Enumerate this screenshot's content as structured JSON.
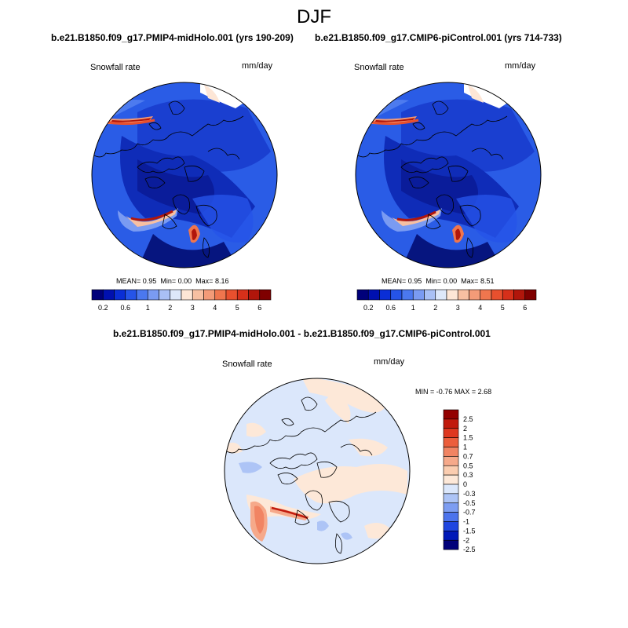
{
  "figure": {
    "season": "DJF"
  },
  "panels": [
    {
      "title": "b.e21.B1850.f09_g17.PMIP4-midHolo.001 (yrs 190-209)",
      "variable": "Snowfall rate",
      "units": "mm/day",
      "stats": {
        "mean_label": "MEAN=",
        "mean": "0.95",
        "min_label": "Min=",
        "min": "0.00",
        "max_label": "Max=",
        "max": "8.16"
      }
    },
    {
      "title": "b.e21.B1850.f09_g17.CMIP6-piControl.001 (yrs 714-733)",
      "variable": "Snowfall rate",
      "units": "mm/day",
      "stats": {
        "mean_label": "MEAN=",
        "mean": "0.95",
        "min_label": "Min=",
        "min": "0.00",
        "max_label": "Max=",
        "max": "8.51"
      }
    }
  ],
  "diff_panel": {
    "title": "b.e21.B1850.f09_g17.PMIP4-midHolo.001 - b.e21.B1850.f09_g17.CMIP6-piControl.001",
    "variable": "Snowfall rate",
    "units": "mm/day",
    "stats": {
      "min_label": "MIN =",
      "min": "-0.76",
      "max_label": "MAX =",
      "max": "2.68"
    }
  },
  "colorbar_abs": {
    "colors": [
      "#00007a",
      "#0010b0",
      "#0a2ed6",
      "#2554e8",
      "#4b78ef",
      "#7a9bf2",
      "#a9c0f5",
      "#dde8fa",
      "#fde6d6",
      "#f7c0a2",
      "#f39b78",
      "#ef764e",
      "#e8502e",
      "#d6301a",
      "#b1160b",
      "#7f0000"
    ],
    "tick_labels": [
      "0.2",
      "0.6",
      "1",
      "2",
      "3",
      "4",
      "5",
      "6"
    ]
  },
  "colorbar_diff": {
    "colors": [
      "#00007a",
      "#0018b8",
      "#1f45e0",
      "#4c73ec",
      "#7d9df2",
      "#adc4f6",
      "#dbe7fb",
      "#fde8d8",
      "#fbcdb0",
      "#f6a98a",
      "#f18463",
      "#ec5e3c",
      "#de3820",
      "#c11a0d",
      "#930000"
    ],
    "tick_labels": [
      "2.5",
      "2",
      "1.5",
      "1",
      "0.7",
      "0.5",
      "0.3",
      "0",
      "-0.3",
      "-0.5",
      "-0.7",
      "-1",
      "-1.5",
      "-2",
      "-2.5"
    ]
  }
}
